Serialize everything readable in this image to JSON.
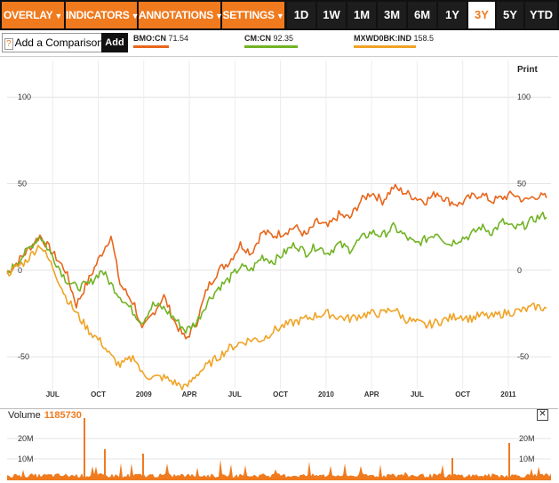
{
  "toolbar": {
    "menus": [
      {
        "label": "OVERLAY"
      },
      {
        "label": "INDICATORS"
      },
      {
        "label": "ANNOTATIONS"
      },
      {
        "label": "SETTINGS"
      }
    ],
    "ranges": [
      {
        "label": "1D"
      },
      {
        "label": "1W"
      },
      {
        "label": "1M"
      },
      {
        "label": "3M"
      },
      {
        "label": "6M"
      },
      {
        "label": "1Y"
      },
      {
        "label": "3Y",
        "active": true
      },
      {
        "label": "5Y"
      },
      {
        "label": "YTD"
      }
    ],
    "caret": "▼"
  },
  "compare": {
    "icon": "?",
    "label": "Add a Comparison",
    "add_label": "Add"
  },
  "print_label": "Print",
  "colors": {
    "bmo": "#e8661c",
    "cm": "#72b325",
    "mxwd": "#f0a326",
    "accent": "#f07a1e"
  },
  "legend": [
    {
      "ticker": "BMO:CN",
      "value": "71.54",
      "color": "#e8661c"
    },
    {
      "ticker": "CM:CN",
      "value": "92.35",
      "color": "#72b325"
    },
    {
      "ticker": "MXWD0BK:IND",
      "value": "158.5",
      "color": "#f0a326"
    }
  ],
  "volume": {
    "label": "Volume",
    "value": "1185730",
    "close_icon": "close-icon",
    "y_ticks": [
      "20M",
      "10M"
    ]
  },
  "chart_data": {
    "type": "line",
    "y_unit": "percent change",
    "ylim": [
      -70,
      115
    ],
    "y_ticks": [
      100,
      50,
      0,
      -50
    ],
    "x_ticks": [
      "JUL",
      "OCT",
      "2009",
      "APR",
      "JUL",
      "OCT",
      "2010",
      "APR",
      "JUL",
      "OCT",
      "2011"
    ],
    "x_tick_index": [
      25,
      50,
      75,
      100,
      125,
      150,
      175,
      200,
      225,
      250,
      275
    ],
    "x_count": 296,
    "grid": true,
    "series": [
      {
        "name": "BMO:CN",
        "color": "#e8661c",
        "keypoints": [
          [
            0,
            -2
          ],
          [
            10,
            10
          ],
          [
            18,
            20
          ],
          [
            25,
            10
          ],
          [
            32,
            0
          ],
          [
            38,
            -20
          ],
          [
            45,
            -5
          ],
          [
            52,
            10
          ],
          [
            57,
            20
          ],
          [
            62,
            -8
          ],
          [
            70,
            -20
          ],
          [
            74,
            -35
          ],
          [
            80,
            -25
          ],
          [
            86,
            -15
          ],
          [
            92,
            -30
          ],
          [
            98,
            -40
          ],
          [
            104,
            -30
          ],
          [
            110,
            -10
          ],
          [
            116,
            0
          ],
          [
            122,
            5
          ],
          [
            128,
            15
          ],
          [
            134,
            10
          ],
          [
            140,
            22
          ],
          [
            146,
            20
          ],
          [
            152,
            22
          ],
          [
            158,
            25
          ],
          [
            164,
            20
          ],
          [
            170,
            28
          ],
          [
            176,
            25
          ],
          [
            182,
            32
          ],
          [
            188,
            30
          ],
          [
            194,
            40
          ],
          [
            200,
            45
          ],
          [
            206,
            40
          ],
          [
            212,
            48
          ],
          [
            218,
            45
          ],
          [
            224,
            42
          ],
          [
            230,
            40
          ],
          [
            236,
            45
          ],
          [
            242,
            40
          ],
          [
            248,
            38
          ],
          [
            254,
            42
          ],
          [
            260,
            44
          ],
          [
            266,
            40
          ],
          [
            272,
            42
          ],
          [
            278,
            44
          ],
          [
            284,
            40
          ],
          [
            290,
            43
          ],
          [
            296,
            42
          ]
        ]
      },
      {
        "name": "CM:CN",
        "color": "#72b325",
        "keypoints": [
          [
            0,
            -2
          ],
          [
            10,
            10
          ],
          [
            18,
            20
          ],
          [
            25,
            8
          ],
          [
            32,
            -5
          ],
          [
            38,
            -10
          ],
          [
            45,
            -8
          ],
          [
            52,
            0
          ],
          [
            57,
            -8
          ],
          [
            62,
            -15
          ],
          [
            70,
            -25
          ],
          [
            74,
            -30
          ],
          [
            80,
            -20
          ],
          [
            86,
            -22
          ],
          [
            92,
            -28
          ],
          [
            98,
            -35
          ],
          [
            104,
            -30
          ],
          [
            110,
            -18
          ],
          [
            116,
            -10
          ],
          [
            122,
            -5
          ],
          [
            128,
            2
          ],
          [
            134,
            0
          ],
          [
            140,
            8
          ],
          [
            146,
            5
          ],
          [
            152,
            10
          ],
          [
            158,
            15
          ],
          [
            164,
            10
          ],
          [
            170,
            14
          ],
          [
            176,
            10
          ],
          [
            182,
            15
          ],
          [
            188,
            12
          ],
          [
            194,
            18
          ],
          [
            200,
            22
          ],
          [
            206,
            20
          ],
          [
            212,
            25
          ],
          [
            218,
            20
          ],
          [
            224,
            15
          ],
          [
            230,
            18
          ],
          [
            236,
            22
          ],
          [
            242,
            15
          ],
          [
            248,
            18
          ],
          [
            254,
            20
          ],
          [
            260,
            25
          ],
          [
            266,
            22
          ],
          [
            272,
            28
          ],
          [
            278,
            24
          ],
          [
            284,
            26
          ],
          [
            290,
            30
          ],
          [
            296,
            32
          ]
        ]
      },
      {
        "name": "MXWD0BK:IND",
        "color": "#f0a326",
        "keypoints": [
          [
            0,
            -2
          ],
          [
            10,
            5
          ],
          [
            18,
            15
          ],
          [
            25,
            2
          ],
          [
            32,
            -15
          ],
          [
            38,
            -25
          ],
          [
            45,
            -35
          ],
          [
            52,
            -42
          ],
          [
            57,
            -50
          ],
          [
            62,
            -55
          ],
          [
            70,
            -50
          ],
          [
            74,
            -60
          ],
          [
            80,
            -62
          ],
          [
            86,
            -62
          ],
          [
            92,
            -65
          ],
          [
            98,
            -68
          ],
          [
            104,
            -60
          ],
          [
            110,
            -55
          ],
          [
            116,
            -50
          ],
          [
            122,
            -45
          ],
          [
            128,
            -42
          ],
          [
            134,
            -40
          ],
          [
            140,
            -40
          ],
          [
            146,
            -35
          ],
          [
            152,
            -32
          ],
          [
            158,
            -30
          ],
          [
            164,
            -28
          ],
          [
            170,
            -26
          ],
          [
            176,
            -25
          ],
          [
            182,
            -27
          ],
          [
            188,
            -28
          ],
          [
            194,
            -26
          ],
          [
            200,
            -25
          ],
          [
            206,
            -25
          ],
          [
            212,
            -22
          ],
          [
            218,
            -28
          ],
          [
            224,
            -30
          ],
          [
            230,
            -32
          ],
          [
            236,
            -30
          ],
          [
            242,
            -28
          ],
          [
            248,
            -26
          ],
          [
            254,
            -28
          ],
          [
            260,
            -26
          ],
          [
            266,
            -27
          ],
          [
            272,
            -25
          ],
          [
            278,
            -24
          ],
          [
            284,
            -23
          ],
          [
            290,
            -21
          ],
          [
            296,
            -22
          ]
        ]
      }
    ]
  }
}
